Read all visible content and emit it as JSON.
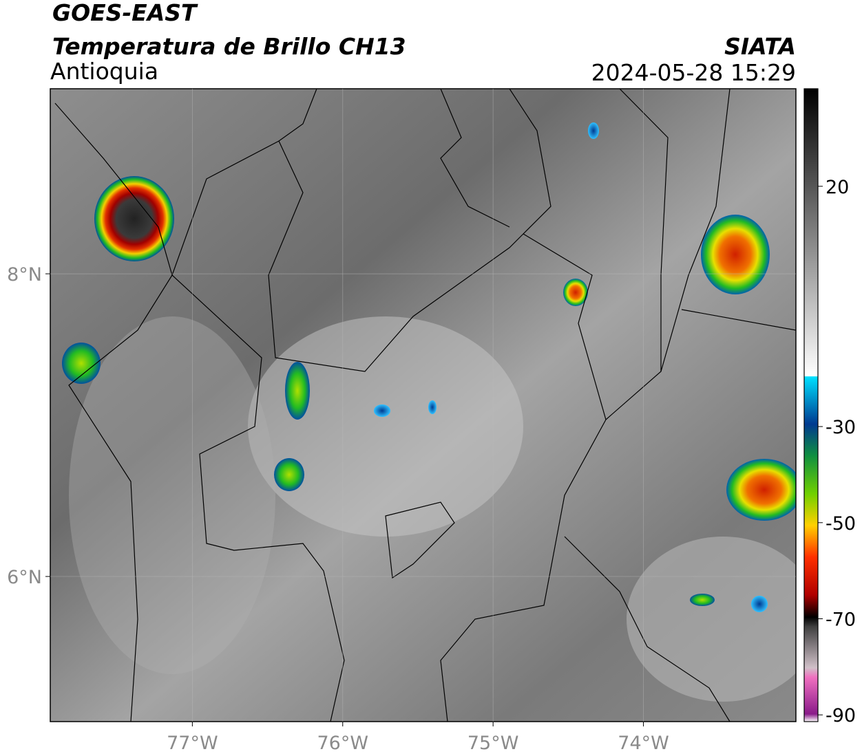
{
  "header": {
    "satellite": "GOES-EAST",
    "product": "Temperatura de Brillo CH13",
    "region": "Antioquia",
    "source": "SIATA",
    "datetime": "2024-05-28 15:29"
  },
  "map": {
    "xlim": [
      -77.945,
      -72.986
    ],
    "ylim": [
      5.041,
      9.223
    ],
    "xticks": [
      {
        "value": -77,
        "label": "77°W"
      },
      {
        "value": -76,
        "label": "76°W"
      },
      {
        "value": -75,
        "label": "75°W"
      },
      {
        "value": -74,
        "label": "74°W"
      }
    ],
    "yticks": [
      {
        "value": 6,
        "label": "6°N"
      },
      {
        "value": 8,
        "label": "8°N"
      }
    ],
    "grid": true
  },
  "colorbar": {
    "lim": [
      -91.4,
      40.3
    ],
    "ticks": [
      -90,
      -70,
      -50,
      -30,
      20
    ]
  }
}
